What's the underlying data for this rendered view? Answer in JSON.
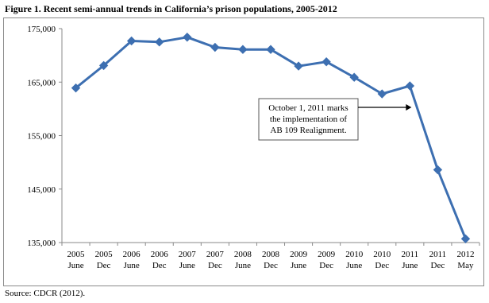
{
  "figure": {
    "title": "Figure 1. Recent semi-annual trends in California’s prison populations, 2005-2012",
    "source": "Source: CDCR (2012)."
  },
  "colors": {
    "series": "#3d6fb1",
    "axis": "#8a8a8a",
    "annotation_border": "#555555"
  },
  "chart_data": {
    "type": "line",
    "title": "",
    "xlabel": "",
    "ylabel": "",
    "ylim": [
      135000,
      175000
    ],
    "yticks": [
      {
        "value": 175000,
        "label": "175,000"
      },
      {
        "value": 165000,
        "label": "165,000"
      },
      {
        "value": 155000,
        "label": "155,000"
      },
      {
        "value": 145000,
        "label": "145,000"
      },
      {
        "value": 135000,
        "label": "135,000"
      }
    ],
    "categories": [
      {
        "year": "2005",
        "period": "June"
      },
      {
        "year": "2005",
        "period": "Dec"
      },
      {
        "year": "2006",
        "period": "June"
      },
      {
        "year": "2006",
        "period": "Dec"
      },
      {
        "year": "2007",
        "period": "June"
      },
      {
        "year": "2007",
        "period": "Dec"
      },
      {
        "year": "2008",
        "period": "June"
      },
      {
        "year": "2008",
        "period": "Dec"
      },
      {
        "year": "2009",
        "period": "June"
      },
      {
        "year": "2009",
        "period": "Dec"
      },
      {
        "year": "2010",
        "period": "June"
      },
      {
        "year": "2010",
        "period": "Dec"
      },
      {
        "year": "2011",
        "period": "June"
      },
      {
        "year": "2011",
        "period": "Dec"
      },
      {
        "year": "2012",
        "period": "May"
      }
    ],
    "series": [
      {
        "values": [
          163900,
          168100,
          172700,
          172500,
          173400,
          171500,
          171100,
          171100,
          168000,
          168800,
          165900,
          162800,
          164300,
          148600,
          135700
        ]
      }
    ],
    "grid": false,
    "legend": "none",
    "annotation": {
      "lines": [
        "October 1, 2011 marks",
        "the implementation of",
        "AB 109 Realignment."
      ],
      "target_category_index": 12
    }
  }
}
